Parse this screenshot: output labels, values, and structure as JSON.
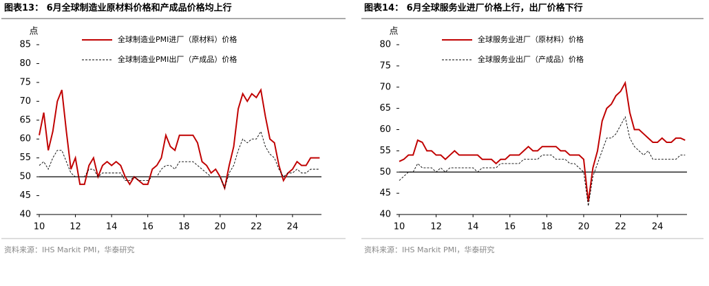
{
  "chart_data": [
    {
      "type": "line",
      "title": "图表13： 6月全球制造业原材料价格和产成品价格均上行",
      "y_label": "点",
      "source": "资料来源：IHS Markit PMI，华泰研究",
      "x": [
        10,
        10.25,
        10.5,
        10.75,
        11,
        11.25,
        11.5,
        11.75,
        12,
        12.25,
        12.5,
        12.75,
        13,
        13.25,
        13.5,
        13.75,
        14,
        14.25,
        14.5,
        14.75,
        15,
        15.25,
        15.5,
        15.75,
        16,
        16.25,
        16.5,
        16.75,
        17,
        17.25,
        17.5,
        17.75,
        18,
        18.25,
        18.5,
        18.75,
        19,
        19.25,
        19.5,
        19.75,
        20,
        20.25,
        20.5,
        20.75,
        21,
        21.25,
        21.5,
        21.75,
        22,
        22.25,
        22.5,
        22.75,
        23,
        23.25,
        23.5,
        23.75,
        24,
        24.25,
        24.5,
        24.75,
        25,
        25.25,
        25.5
      ],
      "series": [
        {
          "name": "全球制造业PMI进厂（原材料）价格",
          "color": "#c00000",
          "dash": false,
          "values": [
            61,
            67,
            57,
            62,
            70,
            73,
            62,
            52,
            55,
            48,
            48,
            53,
            55,
            50,
            53,
            54,
            53,
            54,
            53,
            50,
            48,
            50,
            49,
            48,
            48,
            52,
            53,
            55,
            61,
            58,
            57,
            61,
            61,
            61,
            61,
            59,
            54,
            53,
            51,
            52,
            50,
            47,
            53,
            58,
            68,
            72,
            70,
            72,
            71,
            73,
            66,
            60,
            59,
            53,
            49,
            51,
            52,
            54,
            53,
            53,
            55,
            55,
            55
          ]
        },
        {
          "name": "全球制造业PMI出厂（产成品）价格",
          "color": "#000000",
          "dash": true,
          "values": [
            53,
            54,
            52,
            55,
            57,
            57,
            54,
            51,
            50,
            50,
            50,
            52,
            52,
            50,
            51,
            51,
            51,
            51,
            51,
            49,
            49,
            50,
            49,
            49,
            49,
            50,
            50,
            52,
            53,
            53,
            52,
            54,
            54,
            54,
            54,
            53,
            52,
            51,
            50,
            50,
            50,
            47,
            51,
            53,
            57,
            60,
            59,
            60,
            60,
            62,
            58,
            56,
            55,
            52,
            50,
            51,
            51,
            52,
            51,
            51,
            52,
            52,
            52
          ]
        }
      ],
      "xlim": [
        10,
        25.6
      ],
      "xticks": [
        10,
        12,
        14,
        16,
        18,
        20,
        22,
        24
      ],
      "ylim": [
        40,
        85
      ],
      "yticks": [
        40,
        45,
        50,
        55,
        60,
        65,
        70,
        75,
        80,
        85
      ],
      "baseline": 50
    },
    {
      "type": "line",
      "title": "图表14： 6月全球服务业进厂价格上行，出厂价格下行",
      "y_label": "点",
      "source": "资料来源：IHS Markit PMI，华泰研究",
      "x": [
        10,
        10.25,
        10.5,
        10.75,
        11,
        11.25,
        11.5,
        11.75,
        12,
        12.25,
        12.5,
        12.75,
        13,
        13.25,
        13.5,
        13.75,
        14,
        14.25,
        14.5,
        14.75,
        15,
        15.25,
        15.5,
        15.75,
        16,
        16.25,
        16.5,
        16.75,
        17,
        17.25,
        17.5,
        17.75,
        18,
        18.25,
        18.5,
        18.75,
        19,
        19.25,
        19.5,
        19.75,
        20,
        20.25,
        20.5,
        20.75,
        21,
        21.25,
        21.5,
        21.75,
        22,
        22.25,
        22.5,
        22.75,
        23,
        23.25,
        23.5,
        23.75,
        24,
        24.25,
        24.5,
        24.75,
        25,
        25.25,
        25.5
      ],
      "series": [
        {
          "name": "全球服务业进厂（原材料）价格",
          "color": "#c00000",
          "dash": false,
          "values": [
            52.5,
            53,
            54,
            54,
            57.5,
            57,
            55,
            55,
            54,
            54,
            53,
            54,
            55,
            54,
            54,
            54,
            54,
            54,
            53,
            53,
            53,
            52,
            53,
            53,
            54,
            54,
            54,
            55,
            56,
            55,
            55,
            56,
            56,
            56,
            56,
            55,
            55,
            54,
            54,
            54,
            53,
            43,
            51,
            55,
            62,
            65,
            66,
            68,
            69,
            71,
            64,
            60,
            60,
            59,
            58,
            57,
            57,
            58,
            57,
            57,
            58,
            58,
            57.5
          ]
        },
        {
          "name": "全球服务业出厂（产成品）价格",
          "color": "#000000",
          "dash": true,
          "values": [
            48,
            49,
            50,
            50,
            52,
            51,
            51,
            51,
            50,
            51,
            50,
            51,
            51,
            51,
            51,
            51,
            51,
            50,
            51,
            51,
            51,
            51,
            52,
            52,
            52,
            52,
            52,
            53,
            53,
            53,
            53,
            54,
            54,
            54,
            53,
            53,
            53,
            52,
            52,
            51,
            50,
            42,
            49,
            52,
            55,
            58,
            58,
            59,
            61,
            63,
            58,
            56,
            55,
            54,
            55,
            53,
            53,
            53,
            53,
            53,
            53,
            54,
            54
          ]
        }
      ],
      "xlim": [
        10,
        25.6
      ],
      "xticks": [
        10,
        12,
        14,
        16,
        18,
        20,
        22,
        24
      ],
      "ylim": [
        40,
        80
      ],
      "yticks": [
        40,
        45,
        50,
        55,
        60,
        65,
        70,
        75,
        80
      ],
      "baseline": 50
    }
  ]
}
